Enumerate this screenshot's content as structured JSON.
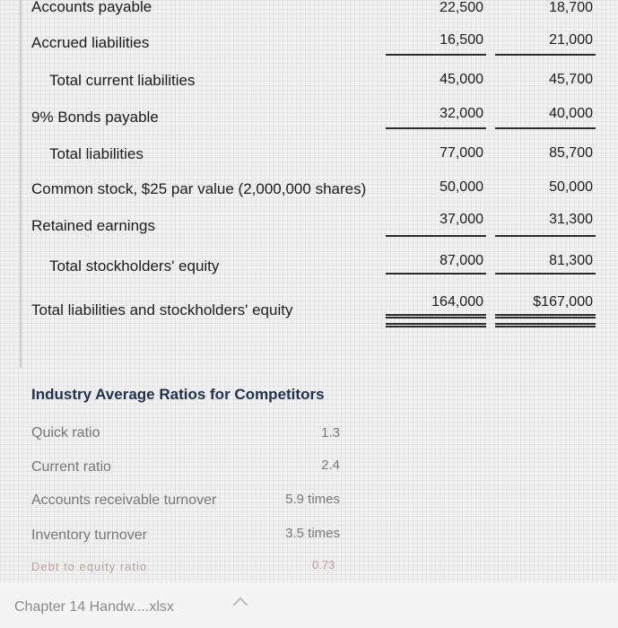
{
  "balance_rows": [
    {
      "label": "Accounts payable",
      "v1": "22,500",
      "v2": "18,700"
    },
    {
      "label": "Accrued liabilities",
      "v1": "16,500",
      "v2": "21,000"
    },
    {
      "label": "Total current liabilities",
      "v1": "45,000",
      "v2": "45,700"
    },
    {
      "label": "9% Bonds payable",
      "v1": "32,000",
      "v2": "40,000"
    },
    {
      "label": "Total liabilities",
      "v1": "77,000",
      "v2": "85,700"
    },
    {
      "label": "Common stock, $25 par value (2,000,000 shares)",
      "v1": "50,000",
      "v2": "50,000"
    },
    {
      "label": "Retained earnings",
      "v1": "37,000",
      "v2": "31,300"
    },
    {
      "label": "Total stockholders' equity",
      "v1": "87,000",
      "v2": "81,300"
    },
    {
      "label": "Total liabilities and stockholders' equity",
      "v1": "164,000",
      "v2": "$167,000"
    }
  ],
  "ratios": {
    "title": "Industry Average Ratios for Competitors",
    "items": [
      {
        "label": "Quick ratio",
        "value": "1.3"
      },
      {
        "label": "Current ratio",
        "value": "2.4"
      },
      {
        "label": "Accounts receivable turnover",
        "value": "5.9 times"
      },
      {
        "label": "Inventory turnover",
        "value": "3.5 times"
      }
    ],
    "cut_label": "Debt to equity ratio",
    "cut_value": "0.73"
  },
  "taskbar": {
    "file_label": "Chapter 14 Handw....xlsx"
  }
}
